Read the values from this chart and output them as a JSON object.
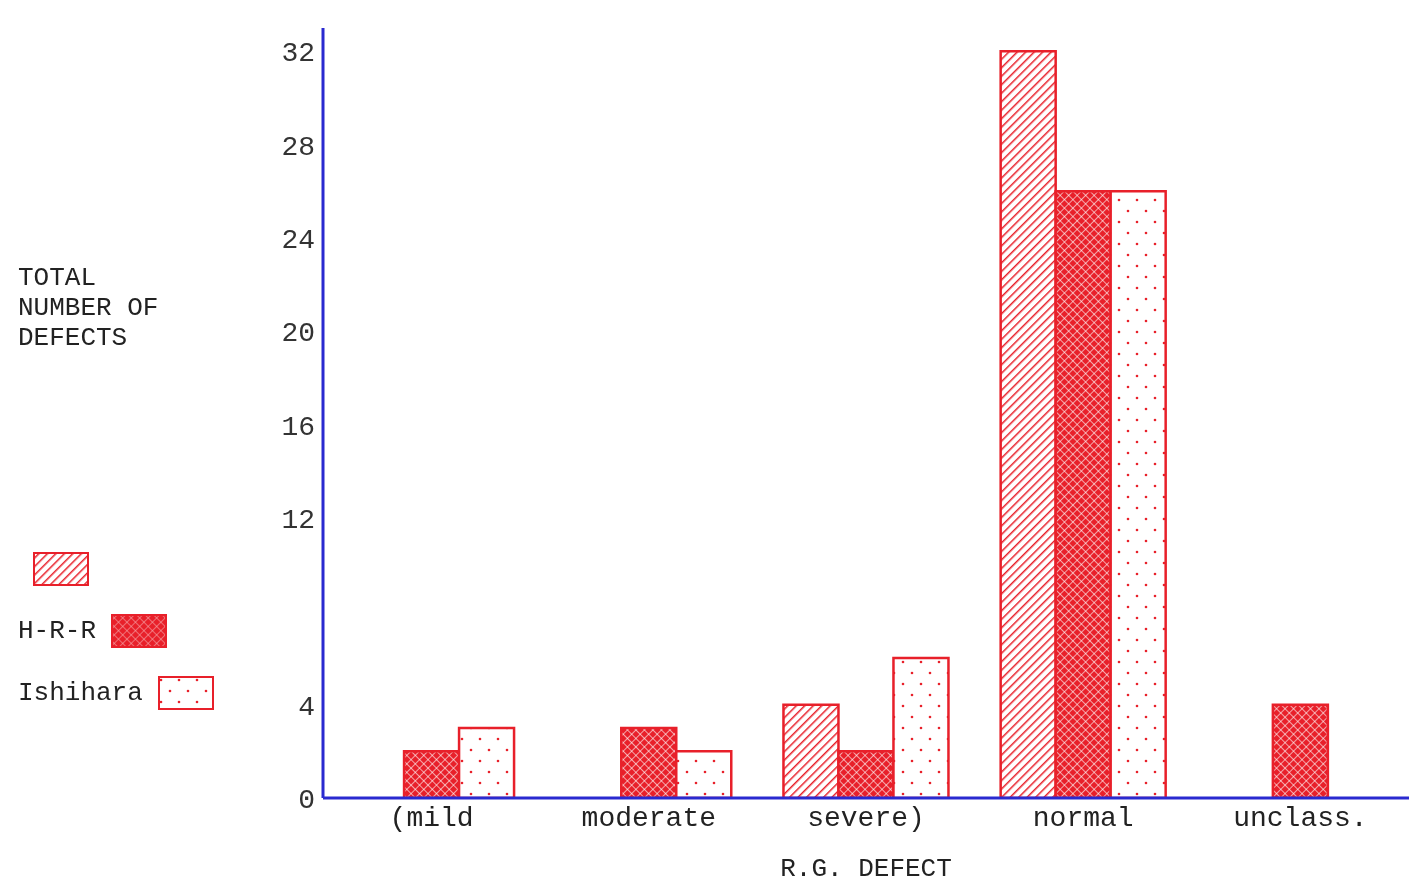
{
  "chart_data": {
    "type": "bar",
    "xlabel": "R.G. DEFECT",
    "ylabel": "TOTAL NUMBER OF DEFECTS",
    "categories": [
      "(mild",
      "moderate",
      "severe)",
      "normal",
      "unclass."
    ],
    "series": [
      {
        "color": "#e8202a",
        "values": [
          0,
          0,
          4,
          32,
          0
        ]
      },
      {
        "name": "H-R-R",
        "color": "#e8202a",
        "values": [
          2,
          3,
          2,
          26,
          4
        ]
      },
      {
        "name": "Ishihara",
        "color": "#e8202a",
        "values": [
          3,
          2,
          6,
          26,
          0
        ]
      }
    ],
    "ylim": [
      0,
      33
    ],
    "yticks": [
      0,
      4,
      12,
      16,
      20,
      24,
      28,
      32
    ],
    "grid": false,
    "legend": "left"
  }
}
